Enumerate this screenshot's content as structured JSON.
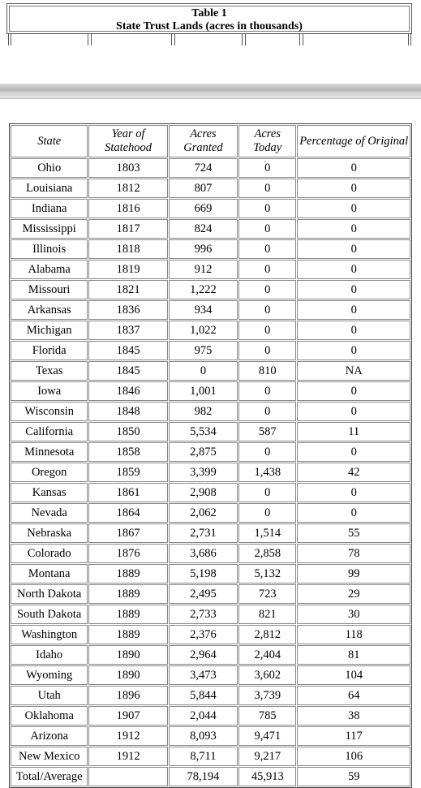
{
  "title": {
    "line1": "Table 1",
    "line2": "State Trust Lands (acres in thousands)"
  },
  "table": {
    "headers": {
      "state": "State",
      "year": "Year of Statehood",
      "granted": "Acres Granted",
      "today": "Acres Today",
      "pct": "Percentage of Original"
    },
    "rows": [
      [
        "Ohio",
        "1803",
        "724",
        "0",
        "0"
      ],
      [
        "Louisiana",
        "1812",
        "807",
        "0",
        "0"
      ],
      [
        "Indiana",
        "1816",
        "669",
        "0",
        "0"
      ],
      [
        "Mississippi",
        "1817",
        "824",
        "0",
        "0"
      ],
      [
        "Illinois",
        "1818",
        "996",
        "0",
        "0"
      ],
      [
        "Alabama",
        "1819",
        "912",
        "0",
        "0"
      ],
      [
        "Missouri",
        "1821",
        "1,222",
        "0",
        "0"
      ],
      [
        "Arkansas",
        "1836",
        "934",
        "0",
        "0"
      ],
      [
        "Michigan",
        "1837",
        "1,022",
        "0",
        "0"
      ],
      [
        "Florida",
        "1845",
        "975",
        "0",
        "0"
      ],
      [
        "Texas",
        "1845",
        "0",
        "810",
        "NA"
      ],
      [
        "Iowa",
        "1846",
        "1,001",
        "0",
        "0"
      ],
      [
        "Wisconsin",
        "1848",
        "982",
        "0",
        "0"
      ],
      [
        "California",
        "1850",
        "5,534",
        "587",
        "11"
      ],
      [
        "Minnesota",
        "1858",
        "2,875",
        "0",
        "0"
      ],
      [
        "Oregon",
        "1859",
        "3,399",
        "1,438",
        "42"
      ],
      [
        "Kansas",
        "1861",
        "2,908",
        "0",
        "0"
      ],
      [
        "Nevada",
        "1864",
        "2,062",
        "0",
        "0"
      ],
      [
        "Nebraska",
        "1867",
        "2,731",
        "1,514",
        "55"
      ],
      [
        "Colorado",
        "1876",
        "3,686",
        "2,858",
        "78"
      ],
      [
        "Montana",
        "1889",
        "5,198",
        "5,132",
        "99"
      ],
      [
        "North Dakota",
        "1889",
        "2,495",
        "723",
        "29"
      ],
      [
        "South Dakota",
        "1889",
        "2,733",
        "821",
        "30"
      ],
      [
        "Washington",
        "1889",
        "2,376",
        "2,812",
        "118"
      ],
      [
        "Idaho",
        "1890",
        "2,964",
        "2,404",
        "81"
      ],
      [
        "Wyoming",
        "1890",
        "3,473",
        "3,602",
        "104"
      ],
      [
        "Utah",
        "1896",
        "5,844",
        "3,739",
        "64"
      ],
      [
        "Oklahoma",
        "1907",
        "2,044",
        "785",
        "38"
      ],
      [
        "Arizona",
        "1912",
        "8,093",
        "9,471",
        "117"
      ],
      [
        "New Mexico",
        "1912",
        "8,711",
        "9,217",
        "106"
      ],
      [
        "Total/Average",
        "",
        "78,194",
        "45,913",
        "59"
      ]
    ]
  }
}
